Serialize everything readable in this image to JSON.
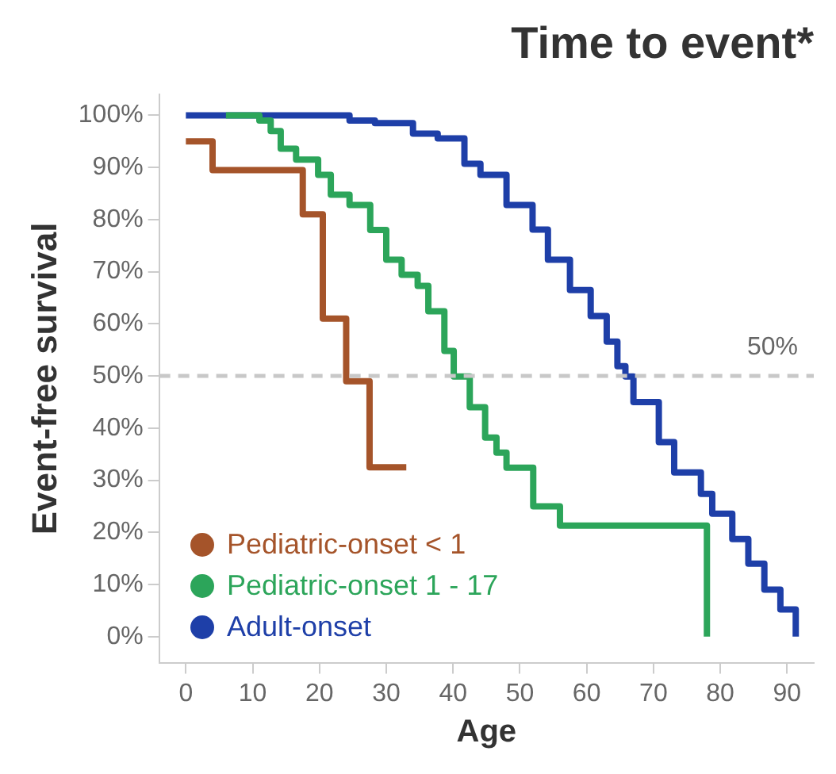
{
  "chart_data": {
    "type": "step",
    "title": "Time to event*",
    "xlabel": "Age",
    "ylabel": "Event-free survival",
    "xlim": [
      -4,
      94
    ],
    "xticks": [
      0,
      10,
      20,
      30,
      40,
      50,
      60,
      70,
      80,
      90
    ],
    "ylim": [
      -5,
      104
    ],
    "yticks": [
      {
        "value": 0,
        "label": "0%"
      },
      {
        "value": 10,
        "label": "10%"
      },
      {
        "value": 20,
        "label": "20%"
      },
      {
        "value": 30,
        "label": "30%"
      },
      {
        "value": 40,
        "label": "40%"
      },
      {
        "value": 50,
        "label": "50%"
      },
      {
        "value": 60,
        "label": "60%"
      },
      {
        "value": 70,
        "label": "70%"
      },
      {
        "value": 80,
        "label": "80%"
      },
      {
        "value": 90,
        "label": "90%"
      },
      {
        "value": 100,
        "label": "100%"
      }
    ],
    "grid": false,
    "legend": "bottom left",
    "marker": "none",
    "line_style": "solid",
    "ref_lines": [
      {
        "axis": "y",
        "value": 50,
        "label": "50%",
        "color": "#c8c8c8",
        "line_style": "dashed"
      }
    ],
    "series": [
      {
        "name": "Pediatric-onset < 1",
        "color": "#a5542a",
        "x": [
          0,
          4,
          17.5,
          20.5,
          24,
          27.5,
          33
        ],
        "values": [
          95,
          89.5,
          81,
          61,
          49,
          32.5,
          32.5
        ]
      },
      {
        "name": "Pediatric-onset 1 - 17",
        "color": "#2ca55a",
        "x": [
          6,
          11,
          12.7,
          14.2,
          16.5,
          19.8,
          21.7,
          24.5,
          27.6,
          30,
          32.3,
          34.7,
          36.3,
          38.7,
          40.1,
          42.5,
          44.8,
          46.5,
          48,
          52,
          56,
          78
        ],
        "values": [
          100,
          99,
          97,
          93.6,
          91.5,
          88.6,
          84.8,
          82.8,
          78,
          72.3,
          69.4,
          67.3,
          62.4,
          54.8,
          49.9,
          44,
          38.2,
          35.3,
          32.4,
          25,
          21.3,
          0
        ]
      },
      {
        "name": "Adult-onset",
        "color": "#1e3fa8",
        "x": [
          0,
          20.5,
          24.5,
          28.3,
          34,
          37.7,
          41.7,
          44.1,
          48,
          51.9,
          54.2,
          57.5,
          60.6,
          63,
          64.6,
          65.8,
          67,
          70.8,
          73.1,
          77.1,
          78.8,
          81.8,
          84.2,
          86.6,
          89,
          91.3,
          91.3
        ],
        "values": [
          100,
          100,
          99,
          98.5,
          96.5,
          95.6,
          90.7,
          88.6,
          82.8,
          78.1,
          72.3,
          66.5,
          61.5,
          56.6,
          51.9,
          49.9,
          45,
          37.3,
          31.5,
          27.4,
          23.6,
          18.7,
          14,
          9,
          5.2,
          3.2,
          0
        ]
      }
    ]
  }
}
